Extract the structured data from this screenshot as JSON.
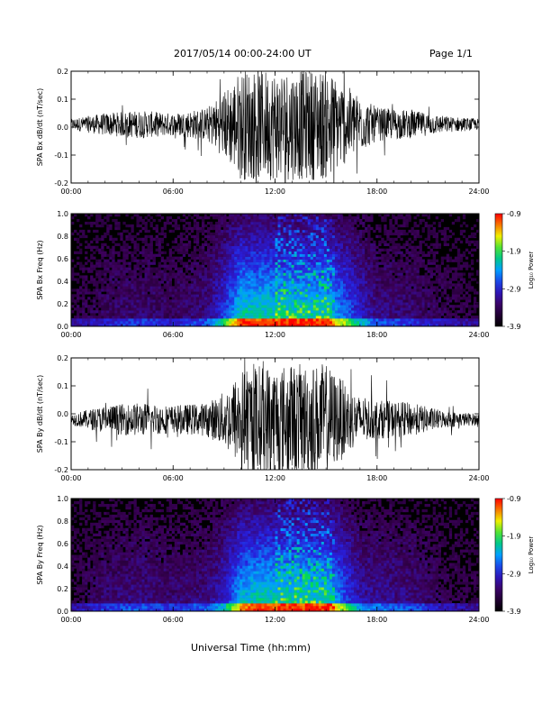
{
  "header": {
    "title": "2017/05/14  00:00-24:00 UT",
    "page": "Page 1/1"
  },
  "footer": {
    "xlabel": "Universal Time (hh:mm)"
  },
  "colors": {
    "trace": "#000000",
    "spectrogram_low": "#000000",
    "spectrogram_high": "#ff0000"
  },
  "chart_data": [
    {
      "id": "bx-trace",
      "type": "line",
      "ylabel": "SPA Bx dB/dt (nT/sec)",
      "ylim": [
        -0.2,
        0.2
      ],
      "yticks": [
        "-0.2",
        "-0.1",
        "0.0",
        "0.1",
        "0.2"
      ],
      "xticks": [
        "00:00",
        "06:00",
        "12:00",
        "18:00",
        "24:00"
      ],
      "x_hours": [
        0,
        2,
        4,
        6,
        8,
        9,
        10,
        11,
        12,
        13,
        14,
        15,
        16,
        17,
        18,
        20,
        22,
        24
      ],
      "envelope": [
        0.02,
        0.04,
        0.05,
        0.04,
        0.06,
        0.12,
        0.2,
        0.2,
        0.2,
        0.2,
        0.2,
        0.2,
        0.15,
        0.1,
        0.06,
        0.05,
        0.03,
        0.02
      ],
      "baseline": 0.01
    },
    {
      "id": "bx-spectrogram",
      "type": "heatmap",
      "ylabel": "SPA Bx Freq (Hz)",
      "ylim": [
        0,
        1.0
      ],
      "yticks": [
        "0.0",
        "0.2",
        "0.4",
        "0.6",
        "0.8",
        "1.0"
      ],
      "xticks": [
        "00:00",
        "06:00",
        "12:00",
        "18:00",
        "24:00"
      ],
      "colorbar": {
        "label": "Log₁₀ Power",
        "range": [
          -3.9,
          -0.9
        ],
        "ticks": [
          "-0.9",
          "-1.9",
          "-2.9",
          "-3.9"
        ]
      }
    },
    {
      "id": "by-trace",
      "type": "line",
      "ylabel": "SPA By dB/dt (nT/sec)",
      "ylim": [
        -0.2,
        0.2
      ],
      "yticks": [
        "-0.2",
        "-0.1",
        "0.0",
        "0.1",
        "0.2"
      ],
      "xticks": [
        "00:00",
        "06:00",
        "12:00",
        "18:00",
        "24:00"
      ],
      "x_hours": [
        0,
        2,
        4,
        6,
        8,
        9,
        10,
        11,
        12,
        13,
        14,
        15,
        16,
        17,
        18,
        20,
        22,
        24
      ],
      "envelope": [
        0.02,
        0.05,
        0.06,
        0.05,
        0.06,
        0.1,
        0.18,
        0.2,
        0.2,
        0.2,
        0.2,
        0.2,
        0.14,
        0.08,
        0.07,
        0.06,
        0.03,
        0.02
      ],
      "baseline": -0.02
    },
    {
      "id": "by-spectrogram",
      "type": "heatmap",
      "ylabel": "SPA By Freq (Hz)",
      "ylim": [
        0,
        1.0
      ],
      "yticks": [
        "0.0",
        "0.2",
        "0.4",
        "0.6",
        "0.8",
        "1.0"
      ],
      "xticks": [
        "00:00",
        "06:00",
        "12:00",
        "18:00",
        "24:00"
      ],
      "colorbar": {
        "label": "Log₁₀ Power",
        "range": [
          -3.9,
          -0.9
        ],
        "ticks": [
          "-0.9",
          "-1.9",
          "-2.9",
          "-3.9"
        ]
      }
    }
  ]
}
